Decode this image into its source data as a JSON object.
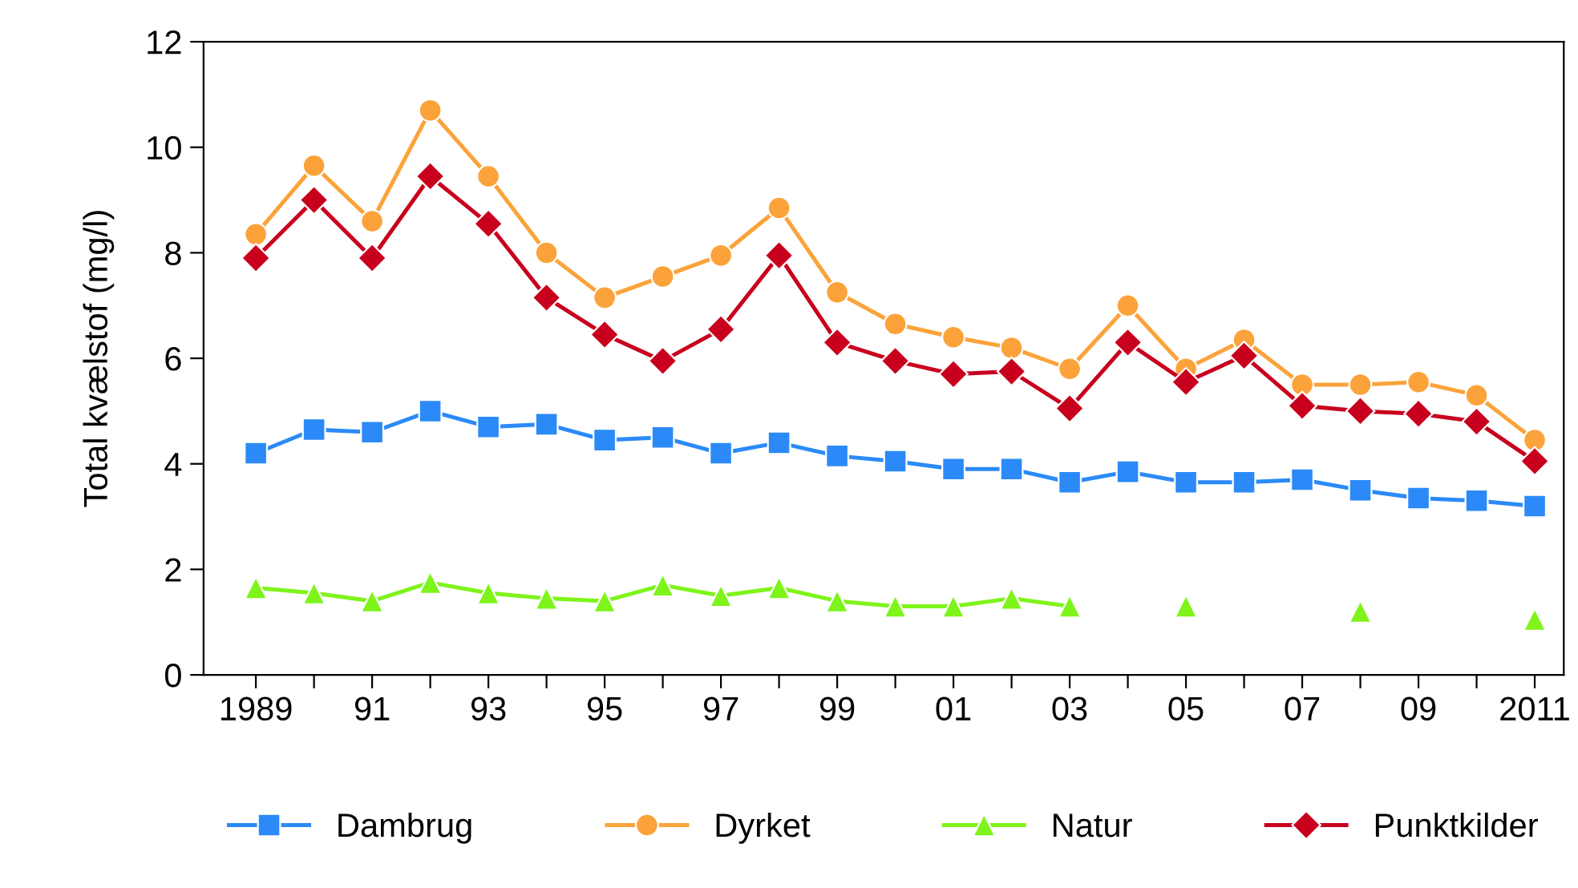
{
  "chart_data": {
    "type": "line",
    "ylabel": "Total kvælstof (mg/l)",
    "x": [
      1989,
      1990,
      1991,
      1992,
      1993,
      1994,
      1995,
      1996,
      1997,
      1998,
      1999,
      2000,
      2001,
      2002,
      2003,
      2004,
      2005,
      2006,
      2007,
      2008,
      2009,
      2010,
      2011
    ],
    "xlim": [
      1988.1,
      2011.5
    ],
    "xticks": [
      {
        "value": 1989,
        "label": "1989"
      },
      {
        "value": 1990,
        "label": null
      },
      {
        "value": 1991,
        "label": "91"
      },
      {
        "value": 1992,
        "label": null
      },
      {
        "value": 1993,
        "label": "93"
      },
      {
        "value": 1994,
        "label": null
      },
      {
        "value": 1995,
        "label": "95"
      },
      {
        "value": 1996,
        "label": null
      },
      {
        "value": 1997,
        "label": "97"
      },
      {
        "value": 1998,
        "label": null
      },
      {
        "value": 1999,
        "label": "99"
      },
      {
        "value": 2000,
        "label": null
      },
      {
        "value": 2001,
        "label": "01"
      },
      {
        "value": 2002,
        "label": null
      },
      {
        "value": 2003,
        "label": "03"
      },
      {
        "value": 2004,
        "label": null
      },
      {
        "value": 2005,
        "label": "05"
      },
      {
        "value": 2006,
        "label": null
      },
      {
        "value": 2007,
        "label": "07"
      },
      {
        "value": 2008,
        "label": null
      },
      {
        "value": 2009,
        "label": "09"
      },
      {
        "value": 2010,
        "label": null
      },
      {
        "value": 2011,
        "label": "2011"
      }
    ],
    "ylim": [
      0,
      12
    ],
    "yticks": [
      0,
      2,
      4,
      6,
      8,
      10,
      12
    ],
    "grid": false,
    "legend": "bottom",
    "line_style": "solid",
    "series": [
      {
        "name": "Dambrug",
        "color": "#2b8af7",
        "marker": "square",
        "values": [
          4.2,
          4.65,
          4.6,
          5.0,
          4.7,
          4.75,
          4.45,
          4.5,
          4.2,
          4.4,
          4.15,
          4.05,
          3.9,
          3.9,
          3.65,
          3.85,
          3.65,
          3.65,
          3.7,
          3.5,
          3.35,
          3.3,
          3.2
        ]
      },
      {
        "name": "Dyrket",
        "color": "#fba33a",
        "marker": "circle",
        "values": [
          8.35,
          9.65,
          8.6,
          10.7,
          9.45,
          8.0,
          7.15,
          7.55,
          7.95,
          8.85,
          7.25,
          6.65,
          6.4,
          6.2,
          5.8,
          7.0,
          5.8,
          6.35,
          5.5,
          5.5,
          5.55,
          5.3,
          4.45
        ]
      },
      {
        "name": "Natur",
        "color": "#7ef41a",
        "marker": "triangle",
        "values": [
          1.65,
          1.55,
          1.4,
          1.75,
          1.55,
          1.45,
          1.4,
          1.7,
          1.5,
          1.65,
          1.4,
          1.3,
          1.3,
          1.45,
          1.3,
          null,
          1.3,
          null,
          null,
          1.2,
          null,
          null,
          1.05
        ]
      },
      {
        "name": "Punktkilder",
        "color": "#c8001e",
        "marker": "diamond",
        "values": [
          7.9,
          9.0,
          7.9,
          9.45,
          8.55,
          7.15,
          6.45,
          5.95,
          6.55,
          7.95,
          6.3,
          5.95,
          5.7,
          5.75,
          5.05,
          6.3,
          5.55,
          6.05,
          5.1,
          5.0,
          4.95,
          4.8,
          4.05
        ]
      }
    ]
  }
}
